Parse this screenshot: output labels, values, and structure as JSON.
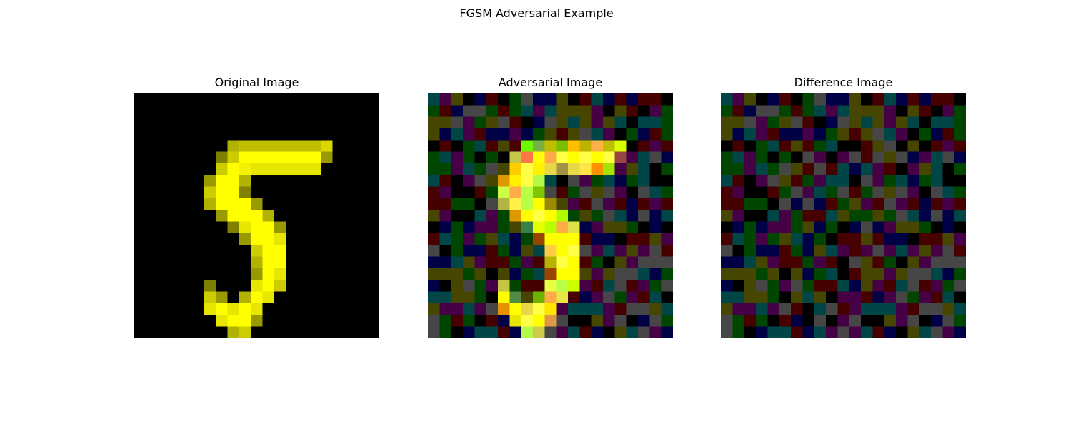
{
  "figure": {
    "title": "FGSM Adversarial Example",
    "panels": [
      {
        "title": "Original Image",
        "image_kind": "original"
      },
      {
        "title": "Adversarial Image",
        "image_kind": "adversarial"
      },
      {
        "title": "Difference Image",
        "image_kind": "difference"
      }
    ],
    "colors": {
      "background": "#ffffff",
      "digit": "#ffff00",
      "image_background": "#000000"
    },
    "digit_shown": "5"
  }
}
